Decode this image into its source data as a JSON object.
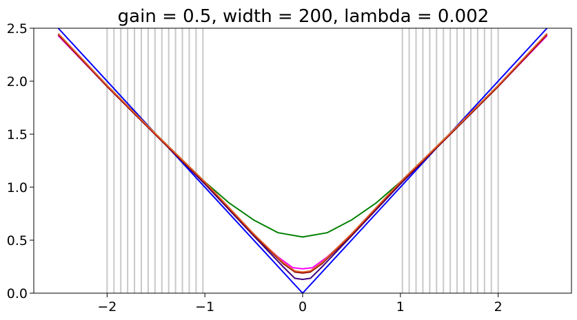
{
  "chart_data": {
    "type": "line",
    "title": "gain = 0.5, width = 200, lambda = 0.002",
    "xlabel": "",
    "ylabel": "",
    "xlim": [
      -2.75,
      2.75
    ],
    "ylim": [
      0.0,
      2.5
    ],
    "x_ticks": [
      -2,
      -1,
      0,
      1,
      2
    ],
    "x_tick_labels": [
      "−2",
      "−1",
      "0",
      "1",
      "2"
    ],
    "y_ticks": [
      0.0,
      0.5,
      1.0,
      1.5,
      2.0,
      2.5
    ],
    "y_tick_labels": [
      "0.0",
      "0.5",
      "1.0",
      "1.5",
      "2.0",
      "2.5"
    ],
    "grid": false,
    "legend": "none",
    "vertical_lines": {
      "color": "#c8c8c8",
      "x": [
        -2.0,
        -1.93,
        -1.86,
        -1.79,
        -1.72,
        -1.65,
        -1.58,
        -1.51,
        -1.44,
        -1.37,
        -1.3,
        -1.23,
        -1.16,
        -1.09,
        -1.02,
        1.02,
        1.09,
        1.16,
        1.23,
        1.3,
        1.37,
        1.44,
        1.51,
        1.58,
        1.65,
        1.72,
        1.79,
        1.86,
        1.93,
        2.0
      ]
    },
    "series": [
      {
        "color": "#0000ff",
        "x": [
          -2.5,
          0.0,
          2.5
        ],
        "y": [
          2.5,
          0.0,
          2.5
        ]
      },
      {
        "color": "#008000",
        "x": [
          -2.5,
          -2.0,
          -1.5,
          -1.0,
          -0.75,
          -0.5,
          -0.25,
          0.0,
          0.25,
          0.5,
          0.75,
          1.0,
          1.5,
          2.0,
          2.5
        ],
        "y": [
          2.44,
          1.96,
          1.5,
          1.05,
          0.85,
          0.69,
          0.57,
          0.53,
          0.57,
          0.69,
          0.85,
          1.05,
          1.5,
          1.96,
          2.44
        ]
      },
      {
        "color": "#ff00ff",
        "x": [
          -2.5,
          -2.0,
          -1.5,
          -1.0,
          -0.5,
          -0.25,
          -0.1,
          0.0,
          0.1,
          0.25,
          0.5,
          1.0,
          1.5,
          2.0,
          2.5
        ],
        "y": [
          2.43,
          1.95,
          1.49,
          1.04,
          0.55,
          0.34,
          0.24,
          0.23,
          0.24,
          0.34,
          0.55,
          1.04,
          1.49,
          1.95,
          2.43
        ]
      },
      {
        "color": "#400080",
        "x": [
          -2.5,
          -2.0,
          -1.5,
          -1.0,
          -0.5,
          -0.2,
          -0.08,
          0.0,
          0.08,
          0.2,
          0.5,
          1.0,
          1.5,
          2.0,
          2.5
        ],
        "y": [
          2.44,
          1.95,
          1.49,
          1.03,
          0.54,
          0.25,
          0.14,
          0.13,
          0.14,
          0.25,
          0.54,
          1.03,
          1.49,
          1.95,
          2.44
        ]
      },
      {
        "color": "#8b0000",
        "x": [
          -2.5,
          -2.0,
          -1.5,
          -1.0,
          -0.5,
          -0.2,
          -0.08,
          0.0,
          0.08,
          0.2,
          0.5,
          1.0,
          1.5,
          2.0,
          2.5
        ],
        "y": [
          2.44,
          1.95,
          1.49,
          1.04,
          0.55,
          0.28,
          0.2,
          0.19,
          0.2,
          0.28,
          0.55,
          1.04,
          1.49,
          1.95,
          2.44
        ]
      },
      {
        "color": "#e0602b",
        "x": [
          -2.5,
          -2.0,
          -1.5,
          -1.0,
          -0.5,
          -0.2,
          -0.08,
          0.0,
          0.08,
          0.2,
          0.5,
          1.0,
          1.5,
          2.0,
          2.5
        ],
        "y": [
          2.45,
          1.96,
          1.5,
          1.05,
          0.56,
          0.29,
          0.21,
          0.2,
          0.21,
          0.29,
          0.56,
          1.05,
          1.5,
          1.96,
          2.45
        ]
      }
    ]
  }
}
